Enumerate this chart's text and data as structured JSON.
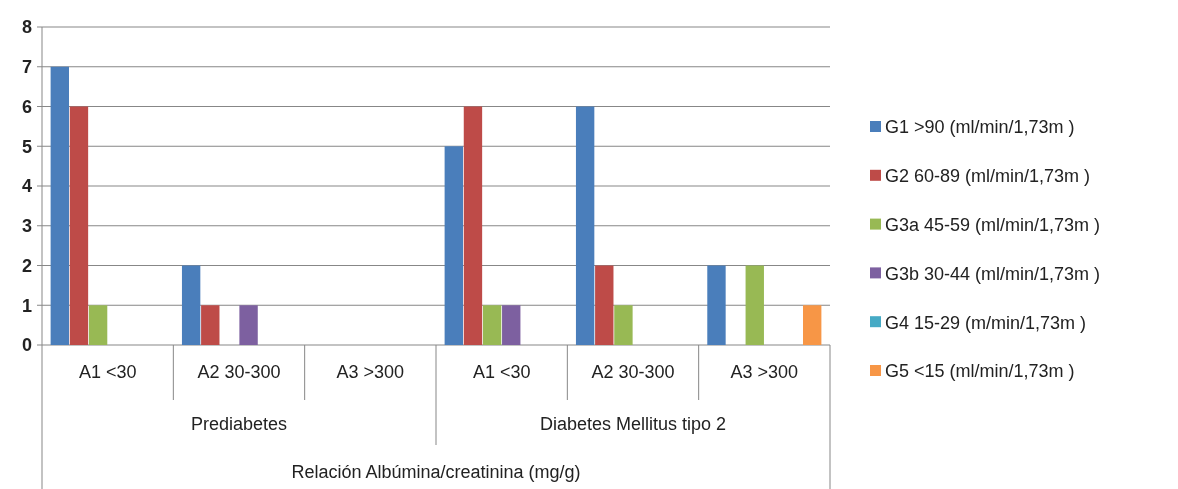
{
  "chart_data": {
    "type": "bar",
    "xlabel": "Relación Albúmina/creatinina (mg/g)",
    "categories": [
      "A1 <30",
      "A2 30-300",
      "A3 >300",
      "A1 <30",
      "A2 30-300",
      "A3 >300"
    ],
    "annotations": [
      "Prediabetes",
      "Diabetes Mellitus tipo 2"
    ],
    "series": [
      {
        "name": "G1 >90 (ml/min/1,73m )",
        "color": "#4a7ebb",
        "values": [
          7,
          2,
          0,
          5,
          6,
          2
        ]
      },
      {
        "name": "G2 60-89 (ml/min/1,73m )",
        "color": "#be4b48",
        "values": [
          6,
          1,
          0,
          6,
          2,
          0
        ]
      },
      {
        "name": "G3a 45-59 (ml/min/1,73m )",
        "color": "#98b954",
        "values": [
          1,
          0,
          0,
          1,
          1,
          2
        ]
      },
      {
        "name": "G3b 30-44 (ml/min/1,73m )",
        "color": "#7d60a0",
        "values": [
          0,
          1,
          0,
          1,
          0,
          0
        ]
      },
      {
        "name": "G4 15-29 (m/min/1,73m )",
        "color": "#46aac5",
        "values": [
          0,
          0,
          0,
          0,
          0,
          0
        ]
      },
      {
        "name": "G5 <15 (ml/min/1,73m )",
        "color": "#f79646",
        "values": [
          0,
          0,
          0,
          0,
          0,
          1
        ]
      }
    ],
    "ylim": [
      0,
      8
    ],
    "yticks": [
      0,
      1,
      2,
      3,
      4,
      5,
      6,
      7,
      8
    ],
    "grid": "y",
    "legend": "right"
  }
}
